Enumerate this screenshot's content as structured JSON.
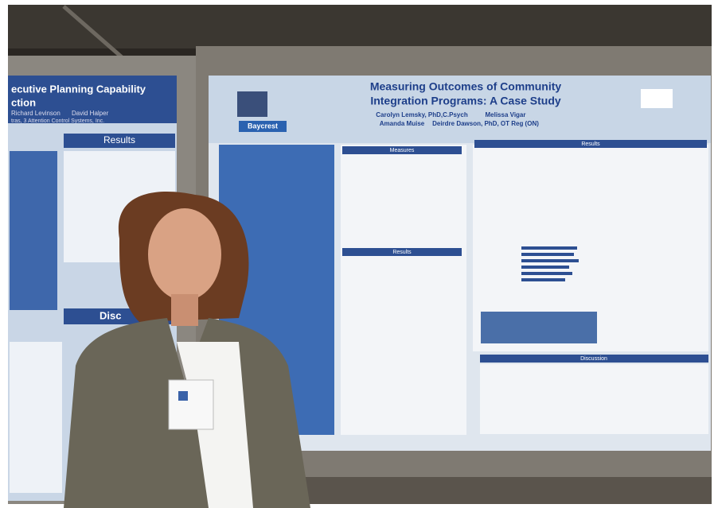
{
  "posters": [
    {
      "title_lines": [
        "ecutive Planning Capability",
        "ction"
      ],
      "authors": "Richard Levinson",
      "author_2": "David Halper",
      "affiliation": "tras, 3 Attention Control Systems, Inc.",
      "sections": [
        "Results",
        "Disc"
      ]
    },
    {
      "title_lines": [
        "Measuring Outcomes of Community",
        "Integration Programs: A Case Study"
      ],
      "authors_lines": [
        "Carolyn Lemsky, PhD,C.Psych",
        "Melissa Vigar",
        "Amanda Muise",
        "Deirdre Dawson, PhD, OT Reg (ON)"
      ],
      "logo": "Baycrest",
      "sections": [
        "Measures",
        "Results",
        "Results",
        "Discussion"
      ]
    }
  ]
}
